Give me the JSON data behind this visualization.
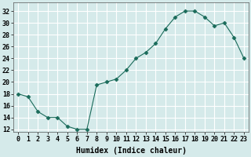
{
  "x": [
    0,
    1,
    2,
    3,
    4,
    5,
    6,
    7,
    8,
    9,
    10,
    11,
    12,
    13,
    14,
    15,
    16,
    17,
    18,
    19,
    20,
    21,
    22,
    23
  ],
  "y": [
    18,
    17.5,
    15,
    14,
    14,
    12.5,
    12,
    12,
    19.5,
    20,
    20.5,
    22,
    24,
    25,
    26.5,
    29,
    31,
    32,
    32,
    31,
    29.5,
    30,
    27.5,
    24
  ],
  "line_color": "#1a6b5a",
  "marker": "D",
  "markersize": 2.5,
  "bg_color": "#d5eaea",
  "grid_color": "#ffffff",
  "xlabel": "Humidex (Indice chaleur)",
  "xlabel_fontsize": 7,
  "xlabel_weight": "bold",
  "tick_fontsize": 6,
  "yticks": [
    12,
    14,
    16,
    18,
    20,
    22,
    24,
    26,
    28,
    30,
    32
  ],
  "xticks": [
    0,
    1,
    2,
    3,
    4,
    5,
    6,
    7,
    8,
    9,
    10,
    11,
    12,
    13,
    14,
    15,
    16,
    17,
    18,
    19,
    20,
    21,
    22,
    23
  ],
  "ylim": [
    11.5,
    33.5
  ],
  "xlim": [
    -0.5,
    23.5
  ]
}
